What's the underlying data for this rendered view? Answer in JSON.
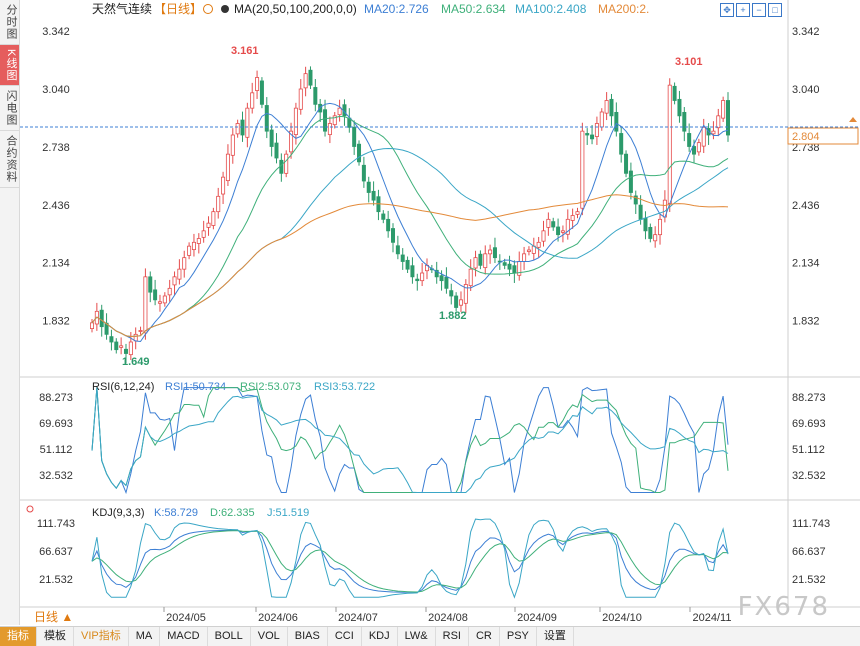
{
  "sidebar": {
    "tabs": [
      {
        "label": "分时图",
        "active": false
      },
      {
        "label": "K线图",
        "active": true
      },
      {
        "label": "闪电图",
        "active": false
      },
      {
        "label": "合约资料",
        "active": false
      }
    ]
  },
  "header": {
    "title": "天然气连续",
    "period": "【日线】",
    "ma_label": "MA(20,50,100,200,0,0)",
    "ma20": "MA20:2.726",
    "ma50": "MA50:2.634",
    "ma100": "MA100:2.408",
    "ma200": "MA200:2."
  },
  "colors": {
    "up": "#e54b4b",
    "down": "#2c9a6b",
    "ma20": "#3d7fd4",
    "ma50": "#3fb07a",
    "ma100": "#3aa6c6",
    "ma200": "#e38a3a",
    "price_line": "#3d7fd4"
  },
  "price_axis": {
    "ticks": [
      "3.342",
      "3.040",
      "2.738",
      "2.436",
      "2.134",
      "1.832"
    ],
    "current": "2.804"
  },
  "annotations": {
    "high1": "3.161",
    "high2": "3.101",
    "low1": "1.649",
    "low2": "1.882"
  },
  "rsi": {
    "title": "RSI(6,12,24)",
    "rsi1": "RSI1:50.734",
    "rsi2": "RSI2:53.073",
    "rsi3": "RSI3:53.722",
    "ticks": [
      "88.273",
      "69.693",
      "51.112",
      "32.532"
    ]
  },
  "kdj": {
    "title": "KDJ(9,3,3)",
    "k": "K:58.729",
    "d": "D:62.335",
    "j": "J:51.519",
    "ticks": [
      "111.743",
      "66.637",
      "21.532"
    ]
  },
  "x_axis": {
    "labels": [
      "2024/05",
      "2024/06",
      "2024/07",
      "2024/08",
      "2024/09",
      "2024/10",
      "2024/11"
    ]
  },
  "bottom_bar": {
    "period": "日线",
    "items": [
      "指标",
      "模板",
      "VIP指标",
      "MA",
      "MACD",
      "BOLL",
      "VOL",
      "BIAS",
      "CCI",
      "KDJ",
      "LW&",
      "RSI",
      "CR",
      "PSY",
      "设置"
    ]
  },
  "watermark": "FX678",
  "chart_data": {
    "type": "candlestick",
    "title": "天然气连续",
    "ylim": [
      1.6,
      3.4
    ],
    "close": [
      1.82,
      1.88,
      1.8,
      1.76,
      1.72,
      1.68,
      1.7,
      1.66,
      1.72,
      1.76,
      1.78,
      2.06,
      1.98,
      1.94,
      1.93,
      1.96,
      2.0,
      2.06,
      2.1,
      2.16,
      2.22,
      2.24,
      2.26,
      2.3,
      2.34,
      2.4,
      2.48,
      2.58,
      2.7,
      2.8,
      2.86,
      2.8,
      2.94,
      3.02,
      3.1,
      2.96,
      2.82,
      2.74,
      2.68,
      2.6,
      2.7,
      2.82,
      2.94,
      3.04,
      3.12,
      3.06,
      2.96,
      2.92,
      2.82,
      2.86,
      2.9,
      2.94,
      2.9,
      2.84,
      2.74,
      2.66,
      2.56,
      2.5,
      2.46,
      2.4,
      2.36,
      2.3,
      2.24,
      2.18,
      2.14,
      2.1,
      2.06,
      2.04,
      2.08,
      2.12,
      2.1,
      2.06,
      2.04,
      2.0,
      1.96,
      1.9,
      1.94,
      2.02,
      2.1,
      2.16,
      2.12,
      2.18,
      2.2,
      2.16,
      2.14,
      2.12,
      2.1,
      2.08,
      2.14,
      2.18,
      2.2,
      2.22,
      2.24,
      2.3,
      2.36,
      2.32,
      2.28,
      2.3,
      2.36,
      2.38,
      2.4,
      2.82,
      2.8,
      2.78,
      2.86,
      2.92,
      2.98,
      2.9,
      2.82,
      2.7,
      2.6,
      2.5,
      2.44,
      2.36,
      2.3,
      2.26,
      2.28,
      2.36,
      2.46,
      3.06,
      2.98,
      2.9,
      2.82,
      2.74,
      2.7,
      2.76,
      2.84,
      2.8,
      2.82,
      2.9,
      2.98,
      2.8
    ]
  }
}
